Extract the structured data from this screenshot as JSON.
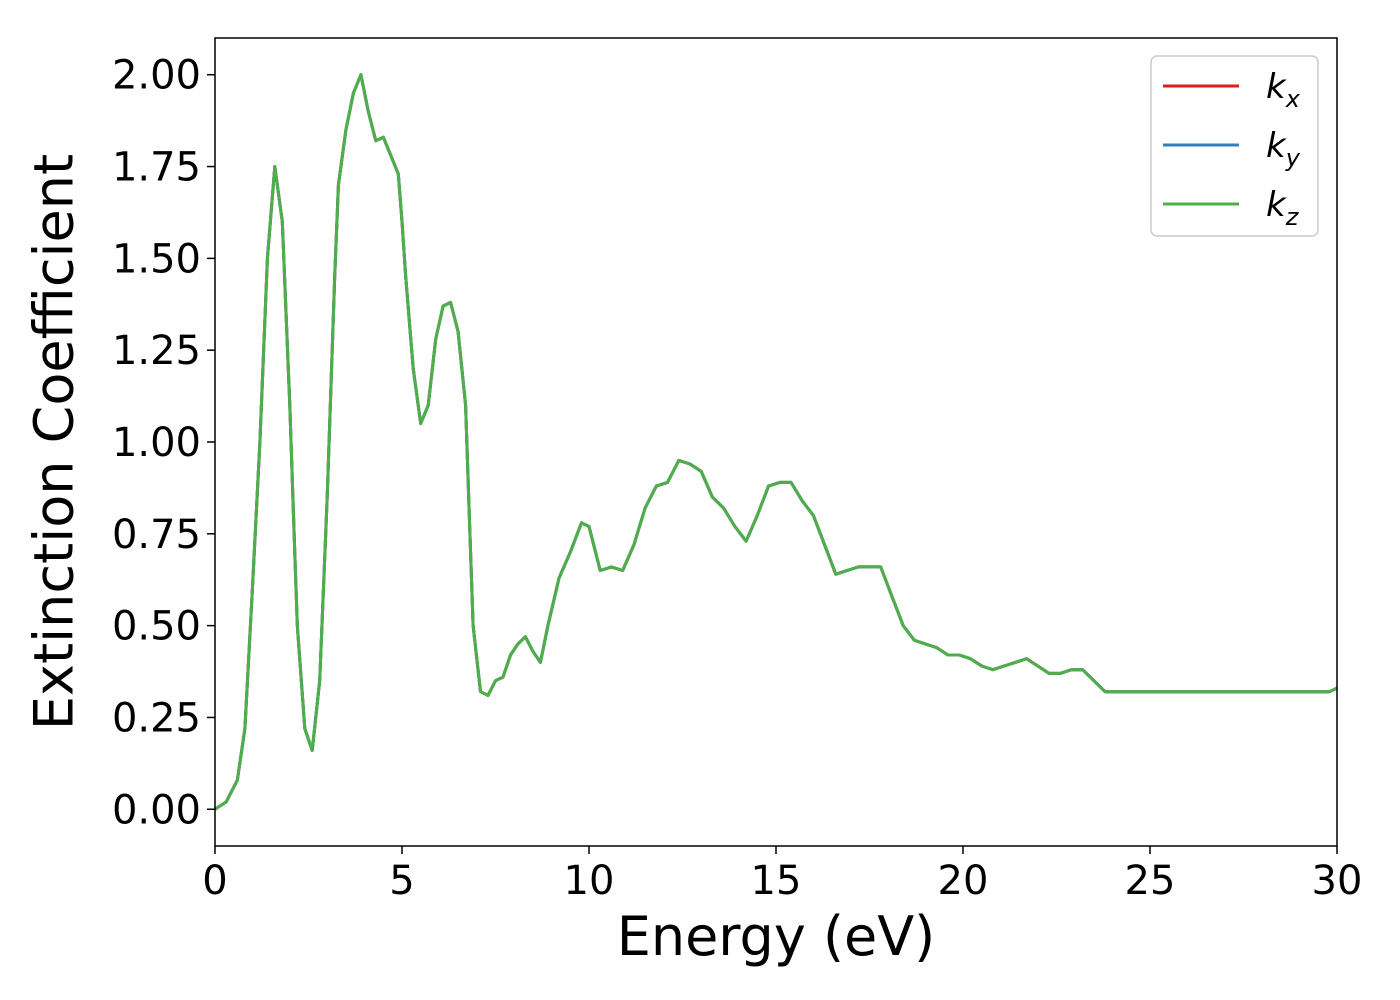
{
  "chart_data": {
    "type": "line",
    "xlabel": "Energy (eV)",
    "ylabel": "Extinction Coefficient",
    "xlim": [
      0,
      30
    ],
    "ylim": [
      -0.1,
      2.1
    ],
    "xticks": [
      0,
      5,
      10,
      15,
      20,
      25,
      30
    ],
    "xtick_labels": [
      "0",
      "5",
      "10",
      "15",
      "20",
      "25",
      "30"
    ],
    "yticks": [
      0.0,
      0.25,
      0.5,
      0.75,
      1.0,
      1.25,
      1.5,
      1.75,
      2.0
    ],
    "ytick_labels": [
      "0.00",
      "0.25",
      "0.50",
      "0.75",
      "1.00",
      "1.25",
      "1.50",
      "1.75",
      "2.00"
    ],
    "grid": false,
    "legend_position": "top-right",
    "x": [
      0,
      0.3,
      0.6,
      0.8,
      1.0,
      1.2,
      1.4,
      1.6,
      1.8,
      2.0,
      2.1,
      2.2,
      2.4,
      2.6,
      2.8,
      3.0,
      3.2,
      3.3,
      3.5,
      3.7,
      3.9,
      4.1,
      4.3,
      4.5,
      4.7,
      4.9,
      5.0,
      5.1,
      5.3,
      5.5,
      5.7,
      5.9,
      6.1,
      6.3,
      6.5,
      6.7,
      6.8,
      6.9,
      7.1,
      7.3,
      7.5,
      7.7,
      7.9,
      8.1,
      8.3,
      8.5,
      8.7,
      8.9,
      9.2,
      9.5,
      9.8,
      10.0,
      10.3,
      10.6,
      10.9,
      11.2,
      11.5,
      11.8,
      12.1,
      12.4,
      12.7,
      13.0,
      13.3,
      13.6,
      13.9,
      14.2,
      14.5,
      14.8,
      15.1,
      15.4,
      15.7,
      16.0,
      16.3,
      16.6,
      16.9,
      17.2,
      17.5,
      17.8,
      18.1,
      18.4,
      18.7,
      19.0,
      19.3,
      19.6,
      19.9,
      20.2,
      20.5,
      20.8,
      21.1,
      21.4,
      21.7,
      22.0,
      22.3,
      22.6,
      22.9,
      23.2,
      23.5,
      23.8,
      24.1,
      24.4,
      24.7,
      25.0,
      25.3,
      25.6,
      25.9,
      26.2,
      26.5,
      26.8,
      27.1,
      27.4,
      27.7,
      28.0,
      28.3,
      28.6,
      28.9,
      29.2,
      29.5,
      29.8,
      30.0
    ],
    "series": [
      {
        "name": "kx",
        "color": "#e41a1c",
        "values": [
          0.0,
          0.02,
          0.08,
          0.22,
          0.6,
          1.0,
          1.5,
          1.75,
          1.6,
          1.1,
          0.8,
          0.5,
          0.22,
          0.16,
          0.35,
          0.85,
          1.45,
          1.7,
          1.85,
          1.95,
          2.0,
          1.9,
          1.82,
          1.83,
          1.78,
          1.73,
          1.6,
          1.45,
          1.2,
          1.05,
          1.1,
          1.28,
          1.37,
          1.38,
          1.3,
          1.1,
          0.8,
          0.5,
          0.32,
          0.31,
          0.35,
          0.36,
          0.42,
          0.45,
          0.47,
          0.43,
          0.4,
          0.5,
          0.63,
          0.7,
          0.78,
          0.77,
          0.65,
          0.66,
          0.65,
          0.72,
          0.82,
          0.88,
          0.89,
          0.95,
          0.94,
          0.92,
          0.85,
          0.82,
          0.77,
          0.73,
          0.8,
          0.88,
          0.89,
          0.89,
          0.84,
          0.8,
          0.72,
          0.64,
          0.65,
          0.66,
          0.66,
          0.66,
          0.58,
          0.5,
          0.46,
          0.45,
          0.44,
          0.42,
          0.42,
          0.41,
          0.39,
          0.38,
          0.39,
          0.4,
          0.41,
          0.39,
          0.37,
          0.37,
          0.38,
          0.38,
          0.35,
          0.32,
          0.32,
          0.32,
          0.32,
          0.32,
          0.32,
          0.32,
          0.32,
          0.32,
          0.32,
          0.32,
          0.32,
          0.32,
          0.32,
          0.32,
          0.32,
          0.32,
          0.32,
          0.32,
          0.32,
          0.32,
          0.33
        ]
      },
      {
        "name": "ky",
        "color": "#377eb8",
        "values": [
          0.0,
          0.02,
          0.08,
          0.22,
          0.6,
          1.0,
          1.5,
          1.75,
          1.6,
          1.1,
          0.8,
          0.5,
          0.22,
          0.16,
          0.35,
          0.85,
          1.45,
          1.7,
          1.85,
          1.95,
          2.0,
          1.9,
          1.82,
          1.83,
          1.78,
          1.73,
          1.6,
          1.45,
          1.2,
          1.05,
          1.1,
          1.28,
          1.37,
          1.38,
          1.3,
          1.1,
          0.8,
          0.5,
          0.32,
          0.31,
          0.35,
          0.36,
          0.42,
          0.45,
          0.47,
          0.43,
          0.4,
          0.5,
          0.63,
          0.7,
          0.78,
          0.77,
          0.65,
          0.66,
          0.65,
          0.72,
          0.82,
          0.88,
          0.89,
          0.95,
          0.94,
          0.92,
          0.85,
          0.82,
          0.77,
          0.73,
          0.8,
          0.88,
          0.89,
          0.89,
          0.84,
          0.8,
          0.72,
          0.64,
          0.65,
          0.66,
          0.66,
          0.66,
          0.58,
          0.5,
          0.46,
          0.45,
          0.44,
          0.42,
          0.42,
          0.41,
          0.39,
          0.38,
          0.39,
          0.4,
          0.41,
          0.39,
          0.37,
          0.37,
          0.38,
          0.38,
          0.35,
          0.32,
          0.32,
          0.32,
          0.32,
          0.32,
          0.32,
          0.32,
          0.32,
          0.32,
          0.32,
          0.32,
          0.32,
          0.32,
          0.32,
          0.32,
          0.32,
          0.32,
          0.32,
          0.32,
          0.32,
          0.32,
          0.33
        ]
      },
      {
        "name": "kz",
        "color": "#4daf4a",
        "values": [
          0.0,
          0.02,
          0.08,
          0.22,
          0.6,
          1.0,
          1.5,
          1.75,
          1.6,
          1.1,
          0.8,
          0.5,
          0.22,
          0.16,
          0.35,
          0.85,
          1.45,
          1.7,
          1.85,
          1.95,
          2.0,
          1.9,
          1.82,
          1.83,
          1.78,
          1.73,
          1.6,
          1.45,
          1.2,
          1.05,
          1.1,
          1.28,
          1.37,
          1.38,
          1.3,
          1.1,
          0.8,
          0.5,
          0.32,
          0.31,
          0.35,
          0.36,
          0.42,
          0.45,
          0.47,
          0.43,
          0.4,
          0.5,
          0.63,
          0.7,
          0.78,
          0.77,
          0.65,
          0.66,
          0.65,
          0.72,
          0.82,
          0.88,
          0.89,
          0.95,
          0.94,
          0.92,
          0.85,
          0.82,
          0.77,
          0.73,
          0.8,
          0.88,
          0.89,
          0.89,
          0.84,
          0.8,
          0.72,
          0.64,
          0.65,
          0.66,
          0.66,
          0.66,
          0.58,
          0.5,
          0.46,
          0.45,
          0.44,
          0.42,
          0.42,
          0.41,
          0.39,
          0.38,
          0.39,
          0.4,
          0.41,
          0.39,
          0.37,
          0.37,
          0.38,
          0.38,
          0.35,
          0.32,
          0.32,
          0.32,
          0.32,
          0.32,
          0.32,
          0.32,
          0.32,
          0.32,
          0.32,
          0.32,
          0.32,
          0.32,
          0.32,
          0.32,
          0.32,
          0.32,
          0.32,
          0.32,
          0.32,
          0.32,
          0.33
        ]
      }
    ],
    "legend": [
      {
        "base": "k",
        "sub": "x",
        "color": "#e41a1c"
      },
      {
        "base": "k",
        "sub": "y",
        "color": "#377eb8"
      },
      {
        "base": "k",
        "sub": "z",
        "color": "#4daf4a"
      }
    ]
  }
}
